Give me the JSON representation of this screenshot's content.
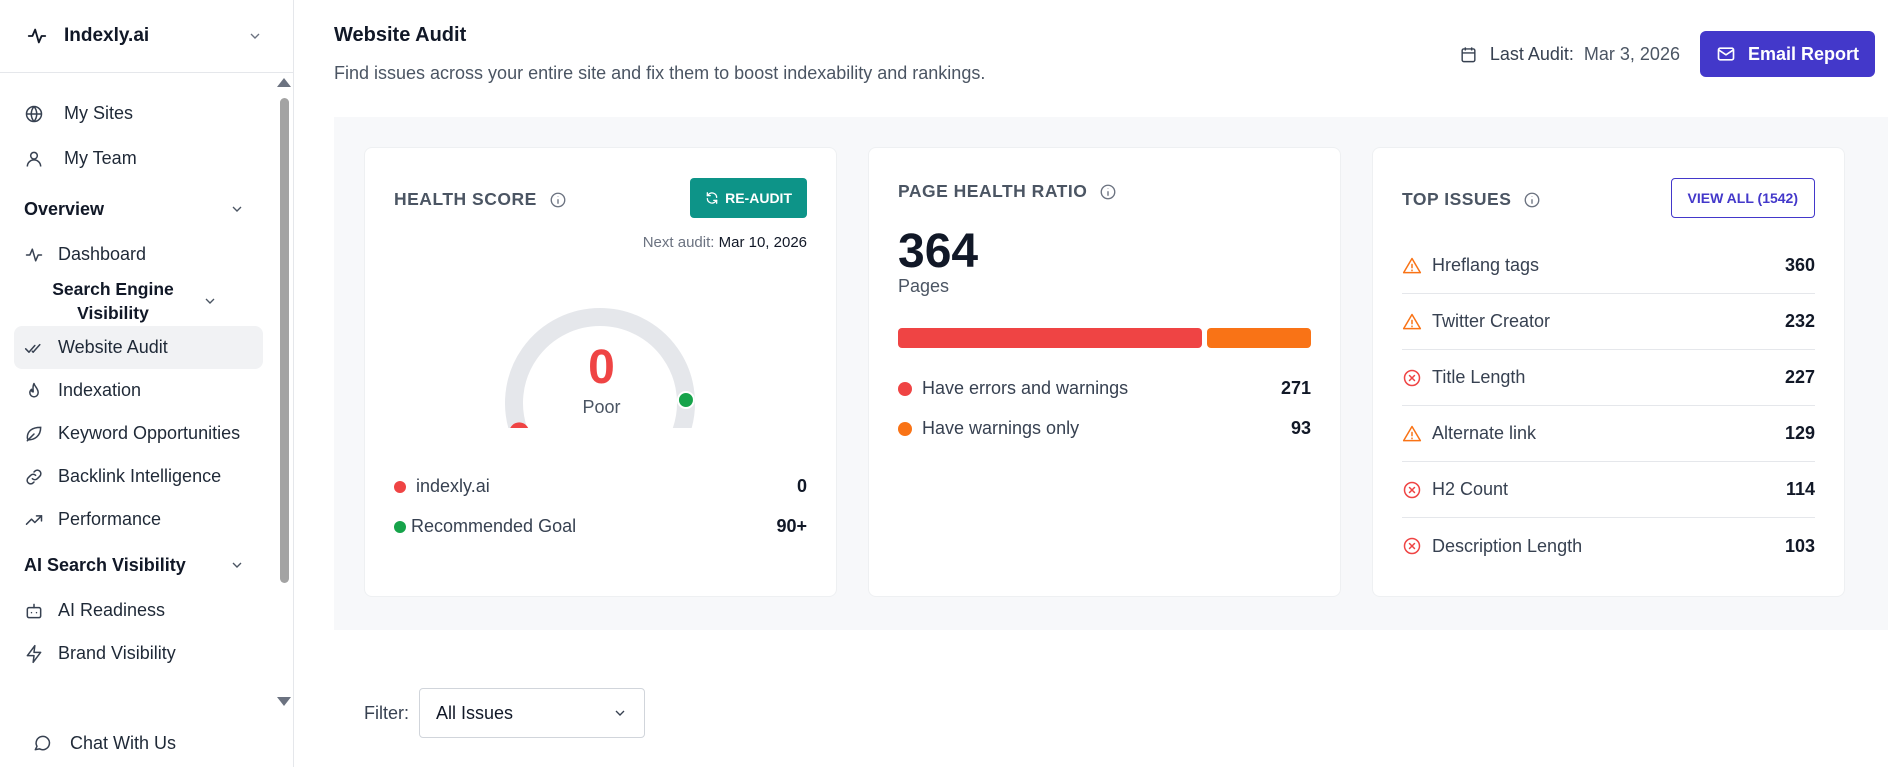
{
  "brand": {
    "name": "Indexly.ai"
  },
  "sidebar": {
    "top_items": [
      {
        "label": "My Sites",
        "icon": "globe-icon"
      },
      {
        "label": "My Team",
        "icon": "user-icon"
      }
    ],
    "overview": {
      "label": "Overview",
      "items": [
        {
          "label": "Dashboard",
          "icon": "activity-icon"
        }
      ],
      "subsection": "Search Engine Visibility",
      "sub_items": [
        {
          "label": "Website Audit",
          "icon": "check-double-icon",
          "active": true
        },
        {
          "label": "Indexation",
          "icon": "flame-icon"
        },
        {
          "label": "Keyword Opportunities",
          "icon": "leaf-icon"
        },
        {
          "label": "Backlink Intelligence",
          "icon": "link-icon"
        },
        {
          "label": "Performance",
          "icon": "trending-up-icon"
        }
      ]
    },
    "ai": {
      "label": "AI Search Visibility",
      "items": [
        {
          "label": "AI Readiness",
          "icon": "bot-icon"
        },
        {
          "label": "Brand Visibility",
          "icon": "zap-icon"
        }
      ]
    },
    "chat_label": "Chat With Us"
  },
  "header": {
    "title": "Website Audit",
    "subtitle": "Find issues across your entire site and fix them to boost indexability and rankings.",
    "last_audit_label": "Last Audit:",
    "last_audit_date": "Mar 3, 2026",
    "email_button": "Email Report"
  },
  "health": {
    "title": "HEALTH SCORE",
    "reaudit_label": "RE-AUDIT",
    "next_audit_label": "Next audit:",
    "next_audit_date": "Mar 10, 2026",
    "score": "0",
    "score_fraction": 0,
    "rating": "Poor",
    "legend": [
      {
        "label": "indexly.ai",
        "value": "0",
        "color": "#ef4444"
      },
      {
        "label": "Recommended Goal",
        "value": "90+",
        "color": "#16a34a"
      }
    ]
  },
  "ratio": {
    "title": "PAGE HEALTH RATIO",
    "total": "364",
    "unit": "Pages",
    "rows": [
      {
        "label": "Have errors and warnings",
        "value": "271",
        "count": 271,
        "color": "#ef4444"
      },
      {
        "label": "Have warnings only",
        "value": "93",
        "count": 93,
        "color": "#f97316"
      }
    ]
  },
  "issues": {
    "title": "TOP ISSUES",
    "view_all": "VIEW ALL (1542)",
    "rows": [
      {
        "label": "Hreflang tags",
        "value": "360",
        "severity": "warning"
      },
      {
        "label": "Twitter Creator",
        "value": "232",
        "severity": "warning"
      },
      {
        "label": "Title Length",
        "value": "227",
        "severity": "error"
      },
      {
        "label": "Alternate link",
        "value": "129",
        "severity": "warning"
      },
      {
        "label": "H2 Count",
        "value": "114",
        "severity": "error"
      },
      {
        "label": "Description Length",
        "value": "103",
        "severity": "error"
      }
    ]
  },
  "filter": {
    "label": "Filter:",
    "value": "All Issues"
  },
  "colors": {
    "accent": "#4338ca",
    "teal": "#0d9488",
    "error": "#ef4444",
    "warning": "#f97316",
    "goal": "#16a34a"
  }
}
